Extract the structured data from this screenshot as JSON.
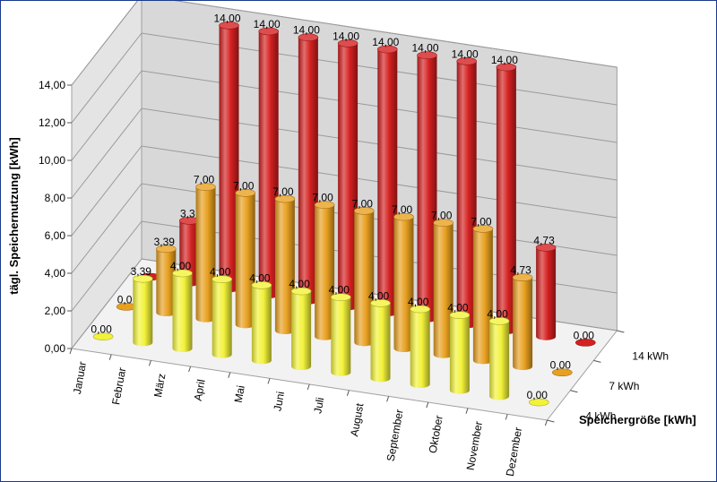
{
  "chart_data": {
    "type": "bar",
    "style": "3d-cylinder",
    "ylabel": "tägl. Speichernutzung [kWh]",
    "zlabel": "Speichergröße [kWh]",
    "ylim": [
      0,
      14
    ],
    "yticks": [
      "0,00",
      "2,00",
      "4,00",
      "6,00",
      "8,00",
      "10,00",
      "12,00",
      "14,00"
    ],
    "grid": true,
    "categories": [
      "Januar",
      "Februar",
      "März",
      "April",
      "Mai",
      "Juni",
      "Juli",
      "August",
      "September",
      "Oktober",
      "November",
      "Dezember"
    ],
    "series": [
      {
        "name": "4 kWh",
        "color": "#f2f23a",
        "values": [
          0,
          3.39,
          4,
          4,
          4,
          4,
          4,
          4,
          4,
          4,
          4,
          0
        ],
        "labels": [
          "0,00",
          "3,39",
          "4,00",
          "4,00",
          "4,00",
          "4,00",
          "4,00",
          "4,00",
          "4,00",
          "4,00",
          "4,00",
          "0,00"
        ]
      },
      {
        "name": "7 kWh",
        "color": "#e8a020",
        "values": [
          0,
          3.39,
          7,
          7,
          7,
          7,
          7,
          7,
          7,
          7,
          4.73,
          0
        ],
        "labels": [
          "0,0",
          "3,39",
          "7,00",
          "7,00",
          "7,00",
          "7,00",
          "7,00",
          "7,00",
          "7,00",
          "7,00",
          "4,73",
          "0,00"
        ]
      },
      {
        "name": "14 kWh",
        "color": "#d42020",
        "values": [
          0,
          3.3,
          14,
          14,
          14,
          14,
          14,
          14,
          14,
          14,
          4.73,
          0
        ],
        "labels": [
          "",
          "3,3",
          "14,00",
          "14,00",
          "14,00",
          "14,00",
          "14,00",
          "14,00",
          "14,00",
          "14,00",
          "4,73",
          "0,00"
        ]
      }
    ]
  }
}
